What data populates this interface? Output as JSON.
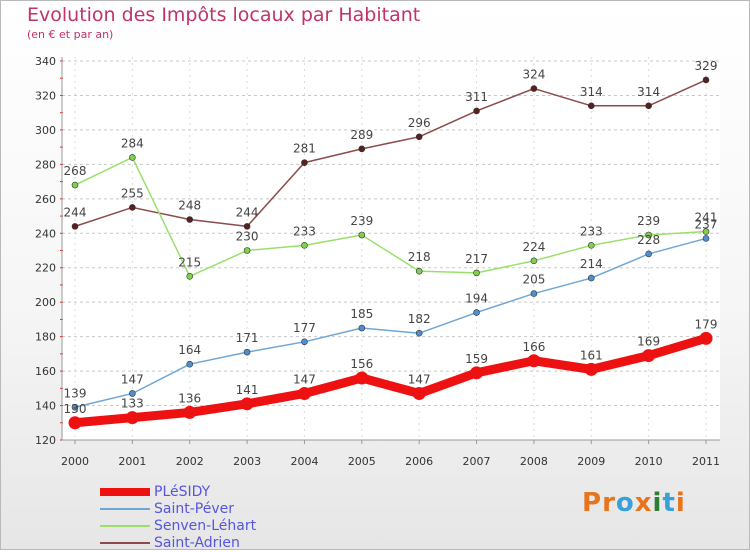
{
  "header": {
    "title": "Evolution des Impôts locaux par Habitant",
    "subtitle": "(en € et par an)"
  },
  "logo": {
    "text": "Proxiti",
    "colors": [
      "#e8741c",
      "#e8741c",
      "#3aa0d8",
      "#e8741c",
      "#2e7d32",
      "#3aa0d8",
      "#e8741c"
    ]
  },
  "chart_data": {
    "type": "line",
    "title": "Evolution des Impôts locaux par Habitant",
    "subtitle": "(en € et par an)",
    "xlabel": "",
    "ylabel": "",
    "x": [
      "2000",
      "2001",
      "2002",
      "2003",
      "2004",
      "2005",
      "2006",
      "2007",
      "2008",
      "2009",
      "2010",
      "2011"
    ],
    "ylim": [
      120,
      340
    ],
    "yticks": [
      120,
      140,
      160,
      180,
      200,
      220,
      240,
      260,
      280,
      300,
      320,
      340
    ],
    "grid": "horizontal dashed",
    "legend_position": "bottom-left",
    "series": [
      {
        "name": "PLéSIDY",
        "values": [
          130,
          133,
          136,
          141,
          147,
          156,
          147,
          159,
          166,
          161,
          169,
          179
        ],
        "color": "#ee1111",
        "width": 9,
        "labels": [
          "130",
          "133",
          "136",
          "141",
          "147",
          "156",
          "147",
          "159",
          "166",
          "161",
          "169",
          "179"
        ]
      },
      {
        "name": "Saint-Péver",
        "values": [
          139,
          147,
          164,
          171,
          177,
          185,
          182,
          194,
          205,
          214,
          228,
          237
        ],
        "color": "#6ea7d6",
        "width": 1.5,
        "labels": [
          "139",
          "147",
          "164",
          "171",
          "177",
          "185",
          "182",
          "194",
          "205",
          "214",
          "228",
          "237"
        ]
      },
      {
        "name": "Senven-Léhart",
        "values": [
          268,
          284,
          215,
          230,
          233,
          239,
          218,
          217,
          224,
          233,
          239,
          241
        ],
        "color": "#99e06b",
        "width": 1.5,
        "labels": [
          "268",
          "284",
          "215",
          "230",
          "233",
          "239",
          "218",
          "217",
          "224",
          "233",
          "239",
          "241"
        ]
      },
      {
        "name": "Saint-Adrien",
        "values": [
          244,
          255,
          248,
          244,
          281,
          289,
          296,
          311,
          324,
          314,
          314,
          329
        ],
        "color": "#8c4a4a",
        "width": 1.5,
        "labels": [
          "244",
          "255",
          "248",
          "244",
          "281",
          "289",
          "296",
          "311",
          "324",
          "314",
          "314",
          "329"
        ]
      }
    ]
  }
}
